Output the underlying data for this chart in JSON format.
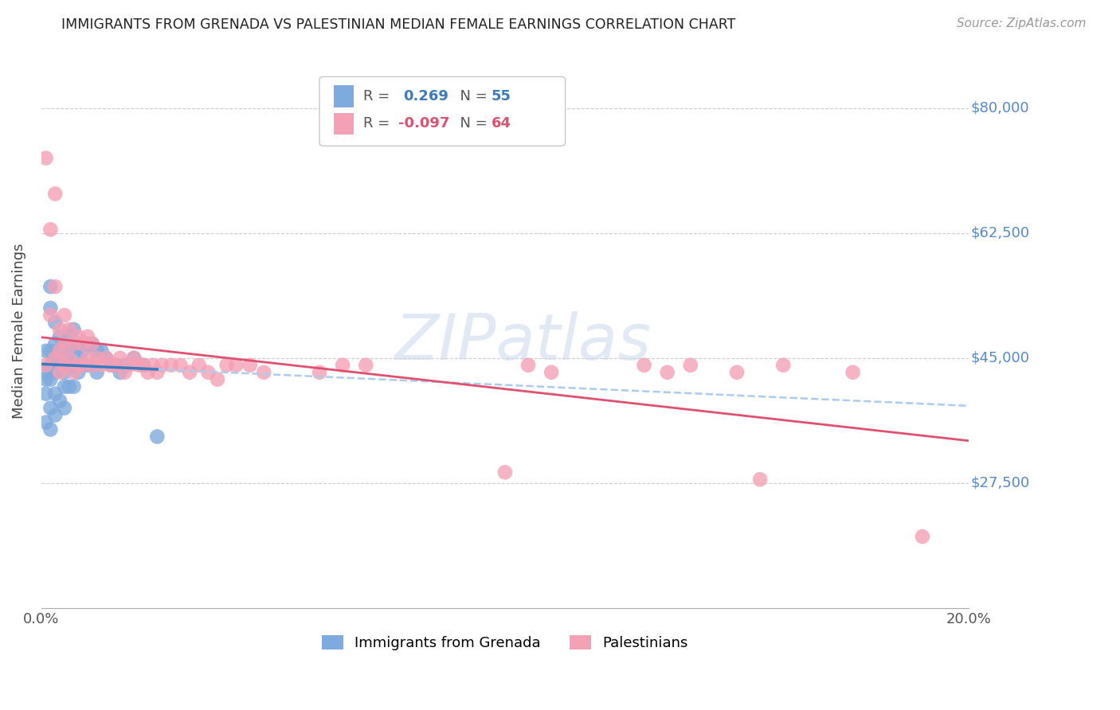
{
  "title": "IMMIGRANTS FROM GRENADA VS PALESTINIAN MEDIAN FEMALE EARNINGS CORRELATION CHART",
  "source": "Source: ZipAtlas.com",
  "ylabel": "Median Female Earnings",
  "ytick_labels": [
    "$27,500",
    "$45,000",
    "$62,500",
    "$80,000"
  ],
  "ytick_values": [
    27500,
    45000,
    62500,
    80000
  ],
  "ymin": 10000,
  "ymax": 87500,
  "xmin": 0.0,
  "xmax": 0.2,
  "grenada_color": "#7faadd",
  "palestinian_color": "#f4a0b5",
  "grenada_line_color": "#3a7abf",
  "palestinian_line_color": "#e05070",
  "dashed_line_color": "#aaccee",
  "background_color": "#ffffff",
  "grenada_R": 0.269,
  "grenada_N": 55,
  "palestinian_R": -0.097,
  "palestinian_N": 64,
  "grenada_x": [
    0.001,
    0.001,
    0.001,
    0.001,
    0.001,
    0.002,
    0.002,
    0.002,
    0.002,
    0.002,
    0.002,
    0.002,
    0.003,
    0.003,
    0.003,
    0.003,
    0.003,
    0.003,
    0.004,
    0.004,
    0.004,
    0.004,
    0.005,
    0.005,
    0.005,
    0.005,
    0.005,
    0.006,
    0.006,
    0.006,
    0.006,
    0.007,
    0.007,
    0.007,
    0.007,
    0.008,
    0.008,
    0.008,
    0.009,
    0.009,
    0.01,
    0.01,
    0.011,
    0.011,
    0.012,
    0.012,
    0.013,
    0.014,
    0.015,
    0.016,
    0.017,
    0.018,
    0.02,
    0.022,
    0.025
  ],
  "grenada_y": [
    42000,
    46000,
    43000,
    40000,
    36000,
    55000,
    52000,
    46000,
    44000,
    42000,
    38000,
    35000,
    50000,
    47000,
    45000,
    43000,
    40000,
    37000,
    48000,
    46000,
    44000,
    39000,
    47000,
    45000,
    43000,
    41000,
    38000,
    48000,
    46000,
    44000,
    41000,
    49000,
    47000,
    44000,
    41000,
    47000,
    45000,
    43000,
    46000,
    44000,
    47000,
    44000,
    47000,
    44000,
    46000,
    43000,
    46000,
    45000,
    44000,
    44000,
    43000,
    44000,
    45000,
    44000,
    34000
  ],
  "palestinian_x": [
    0.001,
    0.001,
    0.002,
    0.002,
    0.003,
    0.003,
    0.003,
    0.004,
    0.004,
    0.004,
    0.005,
    0.005,
    0.005,
    0.006,
    0.006,
    0.007,
    0.007,
    0.008,
    0.008,
    0.009,
    0.009,
    0.01,
    0.01,
    0.011,
    0.011,
    0.012,
    0.013,
    0.014,
    0.015,
    0.016,
    0.017,
    0.018,
    0.019,
    0.02,
    0.021,
    0.022,
    0.023,
    0.024,
    0.025,
    0.026,
    0.028,
    0.03,
    0.032,
    0.034,
    0.036,
    0.038,
    0.04,
    0.042,
    0.045,
    0.048,
    0.06,
    0.065,
    0.07,
    0.1,
    0.105,
    0.11,
    0.13,
    0.135,
    0.14,
    0.15,
    0.155,
    0.16,
    0.175,
    0.19
  ],
  "palestinian_y": [
    73000,
    44000,
    63000,
    51000,
    68000,
    55000,
    45000,
    49000,
    46000,
    43000,
    51000,
    47000,
    44000,
    49000,
    45000,
    47000,
    43000,
    48000,
    44000,
    47000,
    44000,
    48000,
    45000,
    47000,
    44000,
    45000,
    44000,
    45000,
    44000,
    44000,
    45000,
    43000,
    44000,
    45000,
    44000,
    44000,
    43000,
    44000,
    43000,
    44000,
    44000,
    44000,
    43000,
    44000,
    43000,
    42000,
    44000,
    44000,
    44000,
    43000,
    43000,
    44000,
    44000,
    29000,
    44000,
    43000,
    44000,
    43000,
    44000,
    43000,
    28000,
    44000,
    43000,
    20000
  ]
}
